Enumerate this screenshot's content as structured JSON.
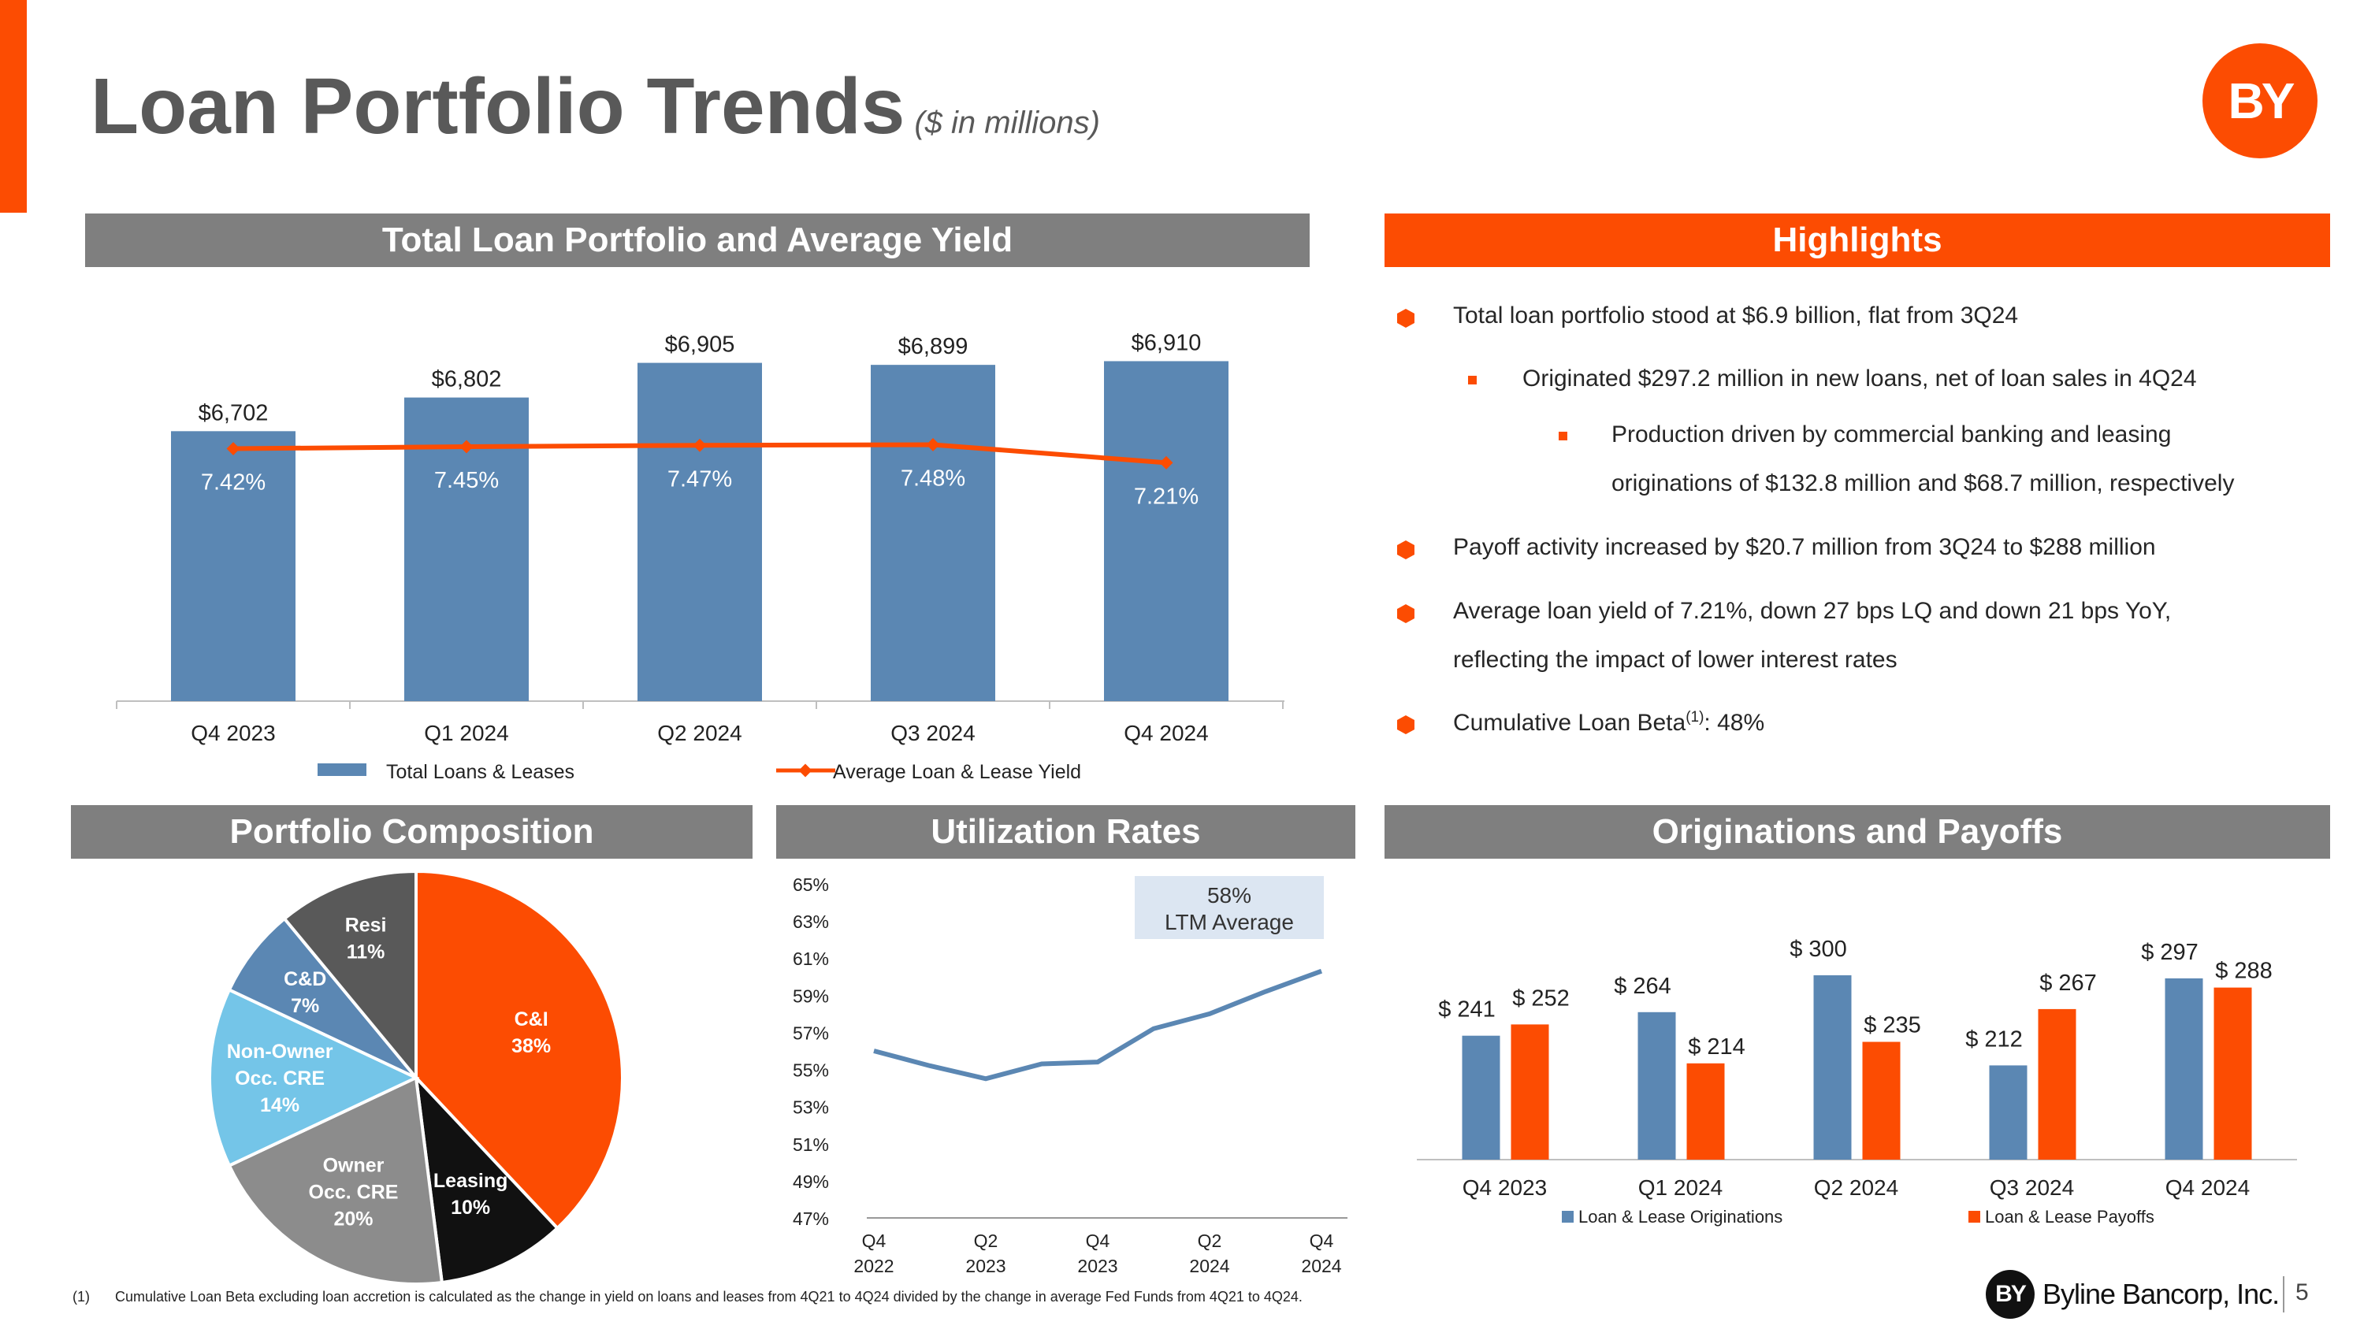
{
  "page": {
    "title": "Loan Portfolio Trends",
    "subtitle": "($ in millions)",
    "logo": "BY",
    "page_number": "5",
    "footer_brand": "Byline Bancorp, Inc.",
    "footnote_marker": "(1)",
    "footnote": "Cumulative Loan Beta excluding loan accretion is calculated as the change in yield on loans and leases from 4Q21 to 4Q24 divided by the change in average Fed Funds from 4Q21 to 4Q24."
  },
  "colors": {
    "accent": "#FC4C02",
    "blue": "#5B87B3",
    "gray": "#7F7F7F"
  },
  "sections": {
    "total_loan": "Total Loan Portfolio and Average Yield",
    "highlights": "Highlights",
    "composition": "Portfolio Composition",
    "utilization": "Utilization Rates",
    "originations": "Originations and Payoffs"
  },
  "highlights": [
    {
      "level": 1,
      "lines": [
        "Total loan portfolio stood at $6.9 billion, flat from 3Q24"
      ]
    },
    {
      "level": 2,
      "lines": [
        "Originated $297.2 million in new loans, net of loan sales in 4Q24"
      ]
    },
    {
      "level": 3,
      "lines": [
        "Production driven by commercial banking and leasing",
        "originations of $132.8 million and $68.7 million, respectively"
      ]
    },
    {
      "level": 1,
      "lines": [
        "Payoff activity increased by $20.7 million from 3Q24 to $288 million"
      ]
    },
    {
      "level": 1,
      "lines": [
        "Average loan yield of 7.21%, down 27 bps LQ and down 21 bps YoY,",
        "reflecting the impact of lower interest rates"
      ]
    },
    {
      "level": 1,
      "lines": [
        "Cumulative Loan Beta",
        ": 48%"
      ],
      "sup": "(1)"
    }
  ],
  "chart_data": [
    {
      "type": "bar",
      "title": "Total Loan Portfolio and Average Yield",
      "categories": [
        "Q4 2023",
        "Q1 2024",
        "Q2 2024",
        "Q3 2024",
        "Q4 2024"
      ],
      "series": [
        {
          "name": "Total Loans & Leases",
          "type": "bar",
          "values": [
            6702,
            6802,
            6905,
            6899,
            6910
          ],
          "labels": [
            "$6,702",
            "$6,802",
            "$6,905",
            "$6,899",
            "$6,910"
          ]
        },
        {
          "name": "Average Loan & Lease Yield",
          "type": "line",
          "values": [
            7.42,
            7.45,
            7.47,
            7.48,
            7.21
          ],
          "labels": [
            "7.42%",
            "7.45%",
            "7.47%",
            "7.48%",
            "7.21%"
          ]
        }
      ],
      "legend": "bottom"
    },
    {
      "type": "pie",
      "title": "Portfolio Composition",
      "slices": [
        {
          "name": "C&I",
          "value": 38,
          "label": "38%"
        },
        {
          "name": "Leasing",
          "value": 10,
          "label": "10%"
        },
        {
          "name": "Owner Occ. CRE",
          "value": 20,
          "label": "20%"
        },
        {
          "name": "Non-Owner Occ. CRE",
          "value": 14,
          "label": "14%"
        },
        {
          "name": "C&D",
          "value": 7,
          "label": "7%"
        },
        {
          "name": "Resi",
          "value": 11,
          "label": "11%"
        }
      ]
    },
    {
      "type": "line",
      "title": "Utilization Rates",
      "x": [
        "Q4 2022",
        "Q1 2023",
        "Q2 2023",
        "Q3 2023",
        "Q4 2023",
        "Q1 2024",
        "Q2 2024",
        "Q3 2024",
        "Q4 2024"
      ],
      "x_tick_labels": [
        "Q4\n2022",
        "Q2\n2023",
        "Q4\n2023",
        "Q2\n2024",
        "Q4\n2024"
      ],
      "values": [
        56.0,
        55.2,
        54.5,
        55.3,
        55.4,
        57.2,
        58.0,
        59.2,
        60.3
      ],
      "ylim": [
        47,
        65
      ],
      "y_ticks": [
        "65%",
        "63%",
        "61%",
        "59%",
        "57%",
        "55%",
        "53%",
        "51%",
        "49%",
        "47%"
      ],
      "annotation": [
        "58%",
        "LTM Average"
      ]
    },
    {
      "type": "bar",
      "title": "Originations and Payoffs",
      "categories": [
        "Q4 2023",
        "Q1 2024",
        "Q2 2024",
        "Q3 2024",
        "Q4 2024"
      ],
      "series": [
        {
          "name": "Loan & Lease Originations",
          "values": [
            241,
            264,
            300,
            212,
            297
          ],
          "labels": [
            "$ 241",
            "$ 264",
            "$ 300",
            "$ 212",
            "$ 297"
          ]
        },
        {
          "name": "Loan & Lease Payoffs",
          "values": [
            252,
            214,
            235,
            267,
            288
          ],
          "labels": [
            "$ 252",
            "$ 214",
            "$ 235",
            "$ 267",
            "$ 288"
          ]
        }
      ],
      "legend": "bottom"
    }
  ]
}
